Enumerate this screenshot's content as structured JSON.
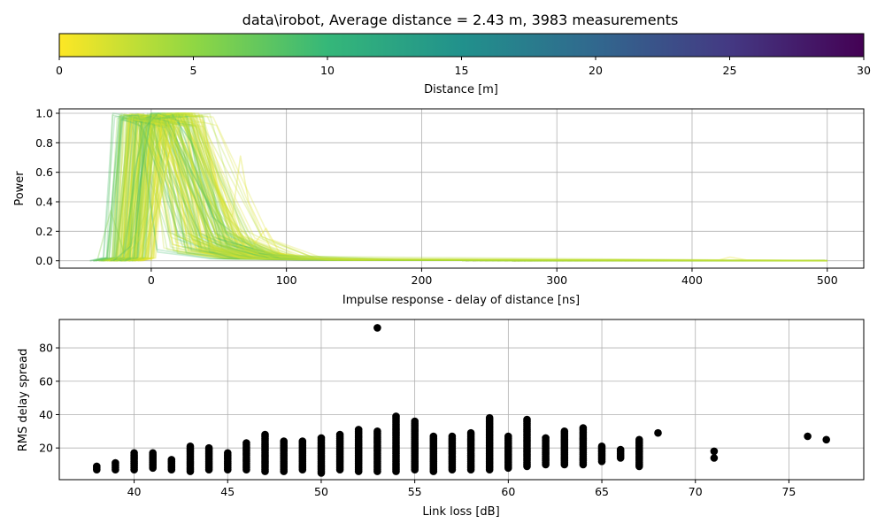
{
  "figure_title": "data\\irobot, Average distance = 2.43 m, 3983 measurements",
  "chart_data": [
    {
      "type": "colorbar",
      "colormap": "viridis (reversed)",
      "colors": [
        "#fde725",
        "#90d743",
        "#35b779",
        "#21918c",
        "#31688e",
        "#443983",
        "#440154"
      ],
      "xlabel": "Distance [m]",
      "xlim": [
        0,
        30
      ],
      "ticks": [
        0,
        5,
        10,
        15,
        20,
        25,
        30
      ]
    },
    {
      "type": "line",
      "title": "",
      "xlabel": "Impulse response - delay of distance [ns]",
      "ylabel": "Power",
      "xlim": [
        -68,
        527
      ],
      "ylim": [
        -0.05,
        1.03
      ],
      "xticks": [
        0,
        100,
        200,
        300,
        400,
        500
      ],
      "yticks": [
        "0.0",
        "0.2",
        "0.4",
        "0.6",
        "0.8",
        "1.0"
      ],
      "grid": true,
      "note_series": "Hundreds of overlapping semi-transparent impulse-response curves colored by distance; representative curves listed.",
      "series": [
        {
          "distance": 6,
          "x": [
            -40,
            -30,
            -20,
            -10,
            0,
            10,
            30,
            60,
            100,
            200,
            500
          ],
          "y": [
            0,
            0.34,
            0.05,
            0.7,
            1.0,
            1.0,
            0.6,
            0.12,
            0.02,
            0.005,
            0.0
          ]
        },
        {
          "distance": 8,
          "x": [
            -30,
            -20,
            -12,
            -5,
            5,
            20,
            45,
            80,
            120,
            300,
            500
          ],
          "y": [
            0,
            0.02,
            0.62,
            0.9,
            1.0,
            0.95,
            0.3,
            0.05,
            0.01,
            0.004,
            0.0
          ]
        },
        {
          "distance": 10,
          "x": [
            -28,
            -15,
            -8,
            0,
            15,
            30,
            50,
            90,
            140,
            500
          ],
          "y": [
            0,
            0.1,
            0.55,
            1.0,
            1.0,
            0.8,
            0.15,
            0.04,
            0.01,
            0.0
          ]
        },
        {
          "distance": 4,
          "x": [
            -25,
            -10,
            -3,
            5,
            25,
            40,
            70,
            110,
            200,
            500
          ],
          "y": [
            0,
            0.2,
            0.8,
            1.0,
            1.0,
            0.45,
            0.08,
            0.02,
            0.006,
            0.0
          ]
        },
        {
          "distance": 3,
          "x": [
            -20,
            -5,
            3,
            12,
            30,
            45,
            65,
            100,
            300,
            500
          ],
          "y": [
            0,
            0.3,
            0.9,
            1.0,
            1.0,
            0.55,
            0.1,
            0.02,
            0.004,
            0.0
          ]
        },
        {
          "distance": 2,
          "x": [
            -15,
            0,
            8,
            20,
            35,
            55,
            85,
            120,
            250,
            500
          ],
          "y": [
            0,
            0.4,
            1.0,
            1.0,
            0.9,
            0.3,
            0.06,
            0.01,
            0.004,
            0.0
          ]
        },
        {
          "distance": 2.5,
          "x": [
            -10,
            5,
            15,
            28,
            42,
            60,
            80,
            130,
            500
          ],
          "y": [
            0,
            0.5,
            1.0,
            1.0,
            0.6,
            0.25,
            0.04,
            0.01,
            0.0
          ]
        },
        {
          "distance": 1.5,
          "x": [
            -5,
            10,
            20,
            35,
            50,
            60,
            66,
            72,
            90,
            150,
            500
          ],
          "y": [
            0,
            0.6,
            1.0,
            1.0,
            0.45,
            0.3,
            0.71,
            0.4,
            0.05,
            0.01,
            0.0
          ]
        },
        {
          "distance": 1,
          "x": [
            0,
            12,
            25,
            38,
            48,
            58,
            75,
            85,
            95,
            130,
            420,
            428,
            440,
            500
          ],
          "y": [
            0,
            0.7,
            1.0,
            0.95,
            0.55,
            0.2,
            0.1,
            0.22,
            0.05,
            0.01,
            0.005,
            0.025,
            0.006,
            0.0
          ]
        },
        {
          "distance": 3.5,
          "x": [
            -22,
            -8,
            2,
            18,
            32,
            48,
            70,
            100,
            500
          ],
          "y": [
            0,
            0.15,
            0.75,
            1.0,
            1.0,
            0.5,
            0.12,
            0.03,
            0.0
          ]
        },
        {
          "distance": 5,
          "x": [
            -35,
            -22,
            -12,
            0,
            20,
            35,
            55,
            95,
            180,
            500
          ],
          "y": [
            0,
            0.03,
            0.5,
            0.95,
            1.0,
            0.7,
            0.2,
            0.04,
            0.008,
            0.0
          ]
        },
        {
          "distance": 2.2,
          "x": [
            -8,
            8,
            18,
            30,
            40,
            52,
            70,
            110,
            500
          ],
          "y": [
            0,
            0.45,
            1.0,
            1.0,
            0.8,
            0.35,
            0.07,
            0.015,
            0.0
          ]
        }
      ]
    },
    {
      "type": "scatter",
      "title": "",
      "xlabel": "Link loss [dB]",
      "ylabel": "RMS delay spread",
      "xlim": [
        36,
        79
      ],
      "ylim": [
        1,
        97
      ],
      "xticks": [
        40,
        45,
        50,
        55,
        60,
        65,
        70,
        75
      ],
      "yticks": [
        20,
        40,
        60,
        80
      ],
      "grid": true,
      "color": "#000000",
      "columns": [
        {
          "x": 38,
          "min": 7,
          "max": 9
        },
        {
          "x": 39,
          "min": 7,
          "max": 11
        },
        {
          "x": 40,
          "min": 7,
          "max": 17
        },
        {
          "x": 41,
          "min": 8,
          "max": 17
        },
        {
          "x": 42,
          "min": 7,
          "max": 13
        },
        {
          "x": 43,
          "min": 6,
          "max": 21
        },
        {
          "x": 44,
          "min": 7,
          "max": 20
        },
        {
          "x": 45,
          "min": 7,
          "max": 17
        },
        {
          "x": 46,
          "min": 7,
          "max": 23
        },
        {
          "x": 47,
          "min": 6,
          "max": 28
        },
        {
          "x": 48,
          "min": 6,
          "max": 24
        },
        {
          "x": 49,
          "min": 7,
          "max": 24
        },
        {
          "x": 50,
          "min": 5,
          "max": 26
        },
        {
          "x": 51,
          "min": 7,
          "max": 28
        },
        {
          "x": 52,
          "min": 6,
          "max": 31
        },
        {
          "x": 53,
          "min": 6,
          "max": 30
        },
        {
          "x": 54,
          "min": 6,
          "max": 39
        },
        {
          "x": 55,
          "min": 7,
          "max": 36
        },
        {
          "x": 56,
          "min": 6,
          "max": 27
        },
        {
          "x": 57,
          "min": 7,
          "max": 27
        },
        {
          "x": 58,
          "min": 7,
          "max": 29
        },
        {
          "x": 59,
          "min": 7,
          "max": 38
        },
        {
          "x": 60,
          "min": 8,
          "max": 27
        },
        {
          "x": 61,
          "min": 9,
          "max": 37
        },
        {
          "x": 62,
          "min": 10,
          "max": 26
        },
        {
          "x": 63,
          "min": 10,
          "max": 30
        },
        {
          "x": 64,
          "min": 10,
          "max": 32
        },
        {
          "x": 65,
          "min": 12,
          "max": 21
        },
        {
          "x": 66,
          "min": 14,
          "max": 19
        },
        {
          "x": 67,
          "min": 9,
          "max": 25
        }
      ],
      "points": [
        {
          "x": 53,
          "y": 92
        },
        {
          "x": 68,
          "y": 29
        },
        {
          "x": 71,
          "y": 14
        },
        {
          "x": 71,
          "y": 18
        },
        {
          "x": 76,
          "y": 27
        },
        {
          "x": 77,
          "y": 25
        }
      ]
    }
  ]
}
